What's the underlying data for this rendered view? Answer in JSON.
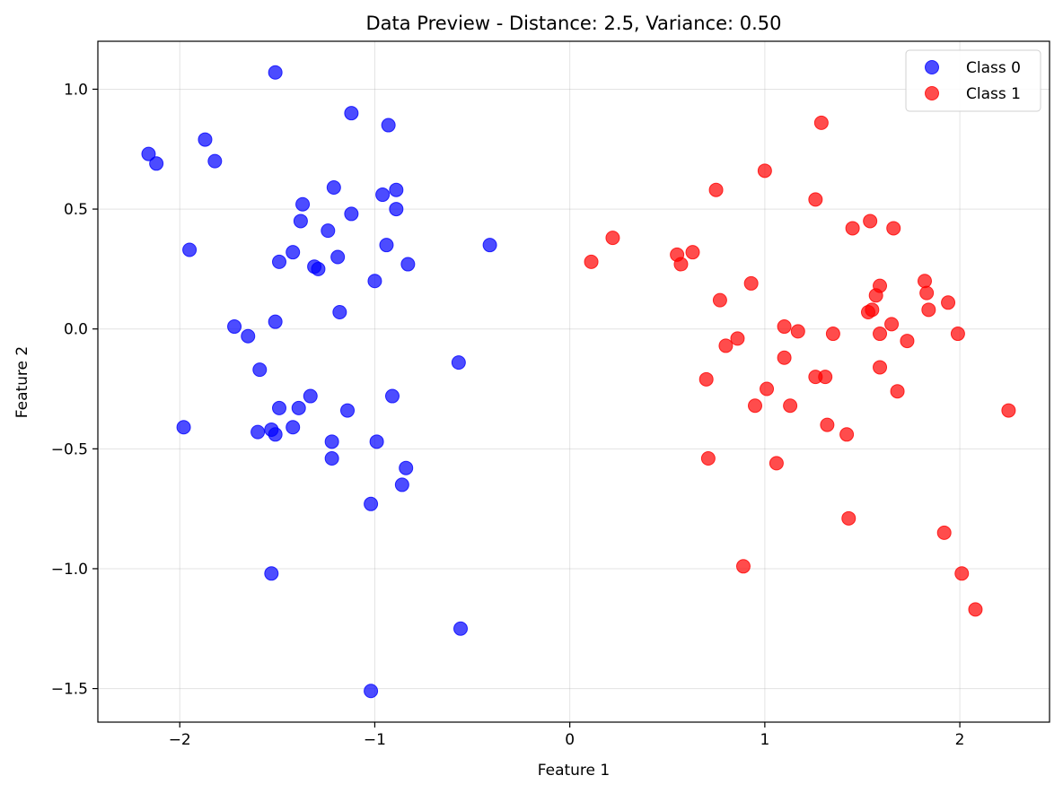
{
  "chart_data": {
    "type": "scatter",
    "title": "Data Preview - Distance: 2.5, Variance: 0.50",
    "xlabel": "Feature 1",
    "ylabel": "Feature 2",
    "xlim": [
      -2.42,
      2.46
    ],
    "ylim": [
      -1.64,
      1.2
    ],
    "xticks": [
      -2,
      -1,
      0,
      1,
      2
    ],
    "yticks": [
      -1.5,
      -1.0,
      -0.5,
      0.0,
      0.5,
      1.0
    ],
    "xtick_labels": [
      "−2",
      "−1",
      "0",
      "1",
      "2"
    ],
    "ytick_labels": [
      "−1.5",
      "−1.0",
      "−0.5",
      "0.0",
      "0.5",
      "1.0"
    ],
    "grid": true,
    "legend_position": "top-right",
    "series": [
      {
        "name": "Class 0",
        "color": "#0000ff",
        "points": [
          [
            -1.51,
            1.07
          ],
          [
            -1.12,
            0.9
          ],
          [
            -0.93,
            0.85
          ],
          [
            -2.16,
            0.73
          ],
          [
            -2.12,
            0.69
          ],
          [
            -1.87,
            0.79
          ],
          [
            -1.82,
            0.7
          ],
          [
            -1.21,
            0.59
          ],
          [
            -0.89,
            0.58
          ],
          [
            -0.96,
            0.56
          ],
          [
            -1.37,
            0.52
          ],
          [
            -0.89,
            0.5
          ],
          [
            -1.12,
            0.48
          ],
          [
            -1.38,
            0.45
          ],
          [
            -1.24,
            0.41
          ],
          [
            -0.94,
            0.35
          ],
          [
            -1.95,
            0.33
          ],
          [
            -1.42,
            0.32
          ],
          [
            -1.19,
            0.3
          ],
          [
            -1.49,
            0.28
          ],
          [
            -1.31,
            0.26
          ],
          [
            -1.29,
            0.25
          ],
          [
            -0.83,
            0.27
          ],
          [
            -0.41,
            0.35
          ],
          [
            -1.0,
            0.2
          ],
          [
            -1.18,
            0.07
          ],
          [
            -1.51,
            0.03
          ],
          [
            -1.72,
            0.01
          ],
          [
            -1.65,
            -0.03
          ],
          [
            -1.59,
            -0.17
          ],
          [
            -0.57,
            -0.14
          ],
          [
            -1.33,
            -0.28
          ],
          [
            -0.91,
            -0.28
          ],
          [
            -1.39,
            -0.33
          ],
          [
            -1.49,
            -0.33
          ],
          [
            -1.14,
            -0.34
          ],
          [
            -1.98,
            -0.41
          ],
          [
            -1.42,
            -0.41
          ],
          [
            -1.53,
            -0.42
          ],
          [
            -1.6,
            -0.43
          ],
          [
            -1.51,
            -0.44
          ],
          [
            -1.22,
            -0.47
          ],
          [
            -0.99,
            -0.47
          ],
          [
            -1.22,
            -0.54
          ],
          [
            -0.84,
            -0.58
          ],
          [
            -0.86,
            -0.65
          ],
          [
            -1.02,
            -0.73
          ],
          [
            -1.53,
            -1.02
          ],
          [
            -0.56,
            -1.25
          ],
          [
            -1.02,
            -1.51
          ]
        ]
      },
      {
        "name": "Class 1",
        "color": "#ff0000",
        "points": [
          [
            1.29,
            0.86
          ],
          [
            1.0,
            0.66
          ],
          [
            0.75,
            0.58
          ],
          [
            1.26,
            0.54
          ],
          [
            1.54,
            0.45
          ],
          [
            1.45,
            0.42
          ],
          [
            1.66,
            0.42
          ],
          [
            0.22,
            0.38
          ],
          [
            0.11,
            0.28
          ],
          [
            0.55,
            0.31
          ],
          [
            0.57,
            0.27
          ],
          [
            0.63,
            0.32
          ],
          [
            1.82,
            0.2
          ],
          [
            0.93,
            0.19
          ],
          [
            1.59,
            0.18
          ],
          [
            1.57,
            0.14
          ],
          [
            1.83,
            0.15
          ],
          [
            0.77,
            0.12
          ],
          [
            1.94,
            0.11
          ],
          [
            1.55,
            0.08
          ],
          [
            1.53,
            0.07
          ],
          [
            1.84,
            0.08
          ],
          [
            1.65,
            0.02
          ],
          [
            1.1,
            0.01
          ],
          [
            1.17,
            -0.01
          ],
          [
            1.35,
            -0.02
          ],
          [
            1.59,
            -0.02
          ],
          [
            1.99,
            -0.02
          ],
          [
            0.86,
            -0.04
          ],
          [
            1.73,
            -0.05
          ],
          [
            0.8,
            -0.07
          ],
          [
            1.1,
            -0.12
          ],
          [
            1.59,
            -0.16
          ],
          [
            0.7,
            -0.21
          ],
          [
            1.26,
            -0.2
          ],
          [
            1.31,
            -0.2
          ],
          [
            1.01,
            -0.25
          ],
          [
            1.68,
            -0.26
          ],
          [
            0.95,
            -0.32
          ],
          [
            1.13,
            -0.32
          ],
          [
            2.25,
            -0.34
          ],
          [
            1.32,
            -0.4
          ],
          [
            1.42,
            -0.44
          ],
          [
            0.71,
            -0.54
          ],
          [
            1.06,
            -0.56
          ],
          [
            1.43,
            -0.79
          ],
          [
            1.92,
            -0.85
          ],
          [
            0.89,
            -0.99
          ],
          [
            2.01,
            -1.02
          ],
          [
            2.08,
            -1.17
          ]
        ]
      }
    ]
  }
}
